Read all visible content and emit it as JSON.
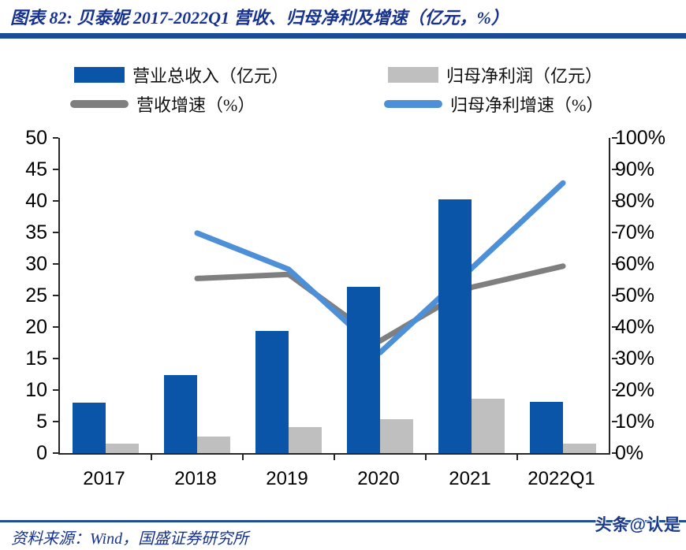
{
  "header": {
    "title": "图表 82:  贝泰妮 2017-2022Q1 营收、归母净利及增速（亿元，%）",
    "accent_color": "#1C4C99"
  },
  "legend": {
    "items": [
      {
        "label": "营业总收入（亿元）",
        "type": "bar",
        "color": "#0B55A9"
      },
      {
        "label": "归母净利润（亿元）",
        "type": "bar",
        "color": "#BFBFBF"
      },
      {
        "label": "营收增速（%）",
        "type": "line",
        "color": "#7F7F7F"
      },
      {
        "label": "归母净利增速（%）",
        "type": "line",
        "color": "#4D90D8"
      }
    ]
  },
  "chart_data": {
    "type": "bar",
    "subtype": "bar+line combo, dual axis",
    "categories": [
      "2017",
      "2018",
      "2019",
      "2020",
      "2021",
      "2022Q1"
    ],
    "series": [
      {
        "name": "营业总收入（亿元）",
        "type": "bar",
        "axis": "left",
        "color": "#0B55A9",
        "values": [
          8.0,
          12.4,
          19.4,
          26.4,
          40.2,
          8.1
        ]
      },
      {
        "name": "归母净利润（亿元）",
        "type": "bar",
        "axis": "left",
        "color": "#BFBFBF",
        "values": [
          1.5,
          2.6,
          4.1,
          5.4,
          8.6,
          1.5
        ]
      },
      {
        "name": "营收增速（%）",
        "type": "line",
        "axis": "right",
        "color": "#7F7F7F",
        "values": [
          null,
          55.4,
          56.7,
          35.6,
          52.6,
          59.3
        ]
      },
      {
        "name": "归母净利增速（%）",
        "type": "line",
        "axis": "right",
        "color": "#4D90D8",
        "values": [
          null,
          69.8,
          58.3,
          31.9,
          58.6,
          85.7
        ]
      }
    ],
    "left_axis": {
      "min": 0,
      "max": 50,
      "step": 5,
      "ticks": [
        "0",
        "5",
        "10",
        "15",
        "20",
        "25",
        "30",
        "35",
        "40",
        "45",
        "50"
      ]
    },
    "right_axis": {
      "min": 0,
      "max": 100,
      "step": 10,
      "ticks": [
        "0%",
        "10%",
        "20%",
        "30%",
        "40%",
        "50%",
        "60%",
        "70%",
        "80%",
        "90%",
        "100%"
      ]
    },
    "grid": false,
    "legend_position": "top"
  },
  "footer": {
    "source": "资料来源：Wind，国盛证券研究所",
    "watermark": "头条@认是"
  }
}
